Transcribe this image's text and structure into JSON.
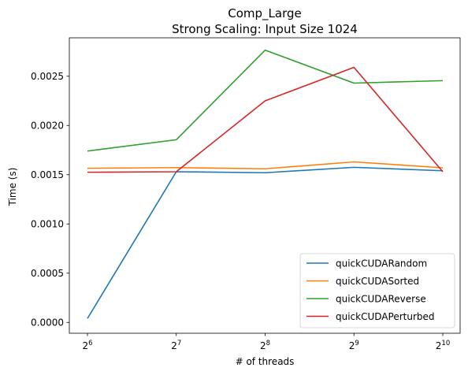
{
  "chart_data": {
    "type": "line",
    "title": "Comp_Large",
    "subtitle": "Strong Scaling: Input Size 1024",
    "xlabel": "# of threads",
    "ylabel": "Time (s)",
    "x_scale": "log2",
    "x": [
      64,
      128,
      256,
      512,
      1024
    ],
    "x_tick_labels": [
      {
        "base": "2",
        "exp": "6"
      },
      {
        "base": "2",
        "exp": "7"
      },
      {
        "base": "2",
        "exp": "8"
      },
      {
        "base": "2",
        "exp": "9"
      },
      {
        "base": "2",
        "exp": "10"
      }
    ],
    "ylim": [
      -0.00011,
      0.00289
    ],
    "y_ticks": [
      0.0,
      0.0005,
      0.001,
      0.0015,
      0.002,
      0.0025
    ],
    "y_tick_labels": [
      "0.0000",
      "0.0005",
      "0.0010",
      "0.0015",
      "0.0020",
      "0.0025"
    ],
    "grid": false,
    "legend_position": "lower-right",
    "series": [
      {
        "name": "quickCUDARandom",
        "color": "#1f77b4",
        "values": [
          4e-05,
          0.00153,
          0.00152,
          0.001575,
          0.00154
        ]
      },
      {
        "name": "quickCUDASorted",
        "color": "#ff7f0e",
        "values": [
          0.001565,
          0.001572,
          0.00156,
          0.00163,
          0.00157
        ]
      },
      {
        "name": "quickCUDAReverse",
        "color": "#2ca02c",
        "values": [
          0.00174,
          0.001855,
          0.002765,
          0.00243,
          0.002455
        ]
      },
      {
        "name": "quickCUDAPerturbed",
        "color": "#d62728",
        "values": [
          0.001525,
          0.00153,
          0.00225,
          0.00259,
          0.00153
        ]
      }
    ]
  }
}
